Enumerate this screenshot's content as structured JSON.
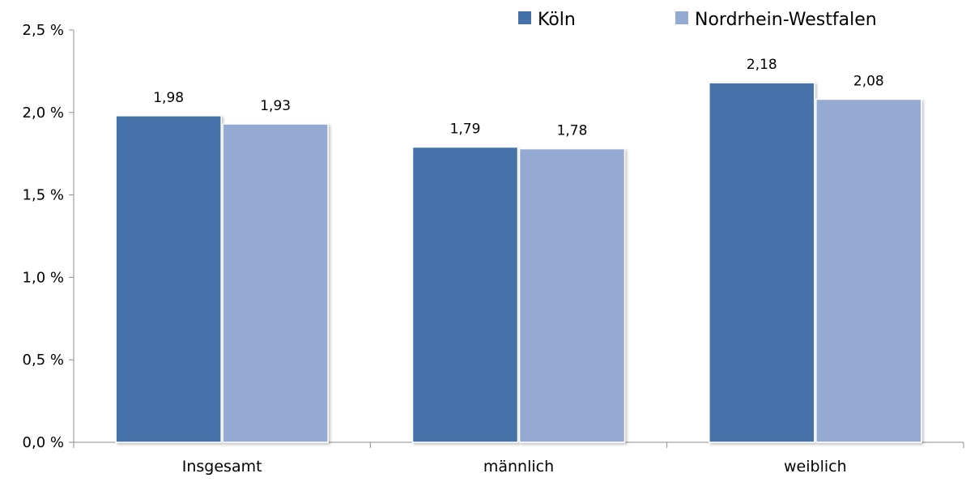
{
  "chart_data": {
    "type": "bar",
    "title": "",
    "xlabel": "",
    "ylabel": "",
    "categories": [
      "Insgesamt",
      "männlich",
      "weiblich"
    ],
    "series": [
      {
        "name": "Köln",
        "values": [
          1.98,
          1.79,
          2.18
        ],
        "value_labels": [
          "1,98",
          "1,79",
          "2,18"
        ],
        "color": "#4472a8"
      },
      {
        "name": "Nordrhein-Westfalen",
        "values": [
          1.93,
          1.78,
          2.08
        ],
        "value_labels": [
          "1,93",
          "1,78",
          "2,08"
        ],
        "color": "#95aad2"
      }
    ],
    "ylim": [
      0,
      2.5
    ],
    "yticks": [
      0,
      0.5,
      1.0,
      1.5,
      2.0,
      2.5
    ],
    "ytick_labels": [
      "0,0 %",
      "0,5 %",
      "1,0 %",
      "1,5 %",
      "2,0 %",
      "2,5 %"
    ],
    "grid": false,
    "legend_position": "top-right"
  }
}
